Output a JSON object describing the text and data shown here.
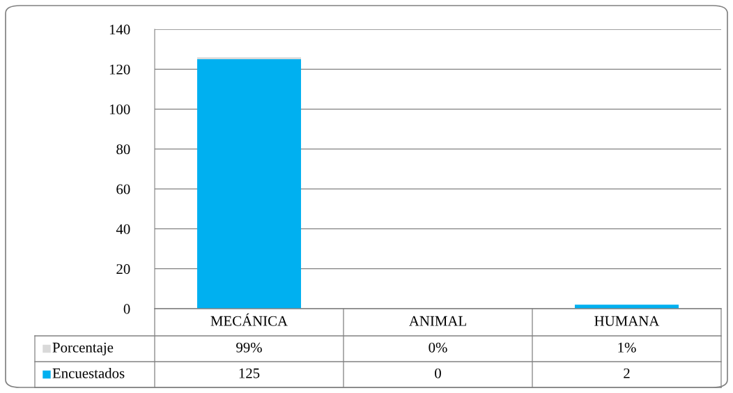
{
  "chart_data": {
    "type": "bar",
    "stacked": true,
    "categories": [
      "MECÁNICA",
      "ANIMAL",
      "HUMANA"
    ],
    "series": [
      {
        "name": "Encuestados",
        "color": "#00b0f0",
        "values": [
          125,
          0,
          2
        ],
        "value_labels": [
          "125",
          "0",
          "2"
        ]
      },
      {
        "name": "Porcentaje",
        "color": "#d9d9d9",
        "values": [
          0.99,
          0,
          0.01
        ],
        "value_labels": [
          "99%",
          "0%",
          "1%"
        ]
      }
    ],
    "ylim": [
      0,
      140
    ],
    "yticks": [
      0,
      20,
      40,
      60,
      80,
      100,
      120,
      140
    ],
    "grid": "y",
    "legend": "bottom left"
  }
}
